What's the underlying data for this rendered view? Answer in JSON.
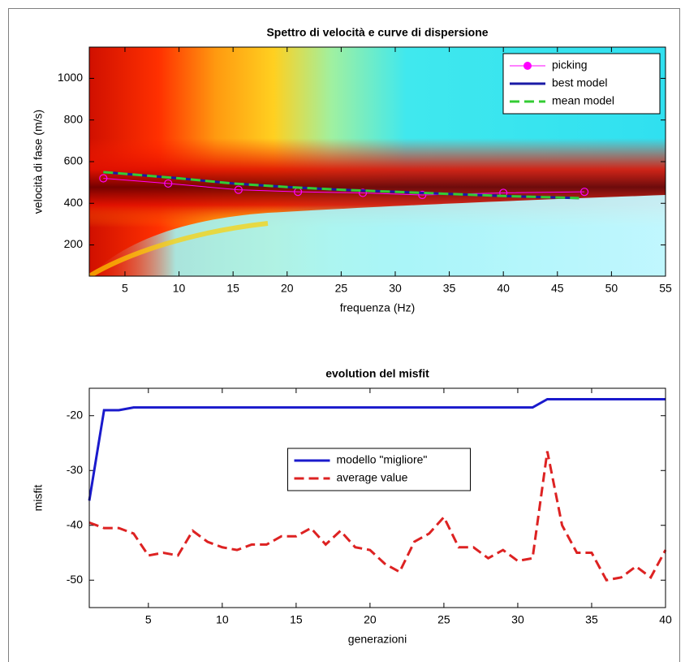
{
  "chart_data": [
    {
      "type": "line",
      "title": "Spettro di velocità e curve di dispersione",
      "xlabel": "frequenza (Hz)",
      "ylabel": "velocità di fase (m/s)",
      "xlim": [
        1.7,
        55
      ],
      "ylim": [
        50,
        1150
      ],
      "xticks": [
        5,
        10,
        15,
        20,
        25,
        30,
        35,
        40,
        45,
        50,
        55
      ],
      "yticks": [
        200,
        400,
        600,
        800,
        1000
      ],
      "grid": false,
      "legend": "upper right",
      "series": [
        {
          "name": "picking",
          "color": "#ff00ff",
          "marker": "circle",
          "dash": "solid",
          "x": [
            3,
            9,
            15.5,
            21,
            27,
            32.5,
            40,
            47.5
          ],
          "values": [
            520,
            495,
            465,
            455,
            450,
            440,
            450,
            455
          ]
        },
        {
          "name": "best model",
          "color": "#1a1aa6",
          "marker": "none",
          "dash": "solid",
          "x": [
            3,
            10,
            15,
            20,
            25,
            30,
            35,
            40,
            47
          ],
          "values": [
            550,
            520,
            495,
            478,
            465,
            455,
            445,
            435,
            425
          ]
        },
        {
          "name": "mean model",
          "color": "#33cc33",
          "marker": "none",
          "dash": "dashed",
          "x": [
            3,
            10,
            15,
            20,
            25,
            30,
            35,
            40,
            47
          ],
          "values": [
            550,
            520,
            495,
            478,
            465,
            455,
            445,
            435,
            425
          ]
        }
      ]
    },
    {
      "type": "line",
      "title": "evolution del misfit",
      "xlabel": "generazioni",
      "ylabel": "misfit",
      "xlim": [
        1,
        40
      ],
      "ylim": [
        -55,
        -15
      ],
      "xticks": [
        5,
        10,
        15,
        20,
        25,
        30,
        35,
        40
      ],
      "yticks": [
        -20,
        -30,
        -40,
        -50
      ],
      "grid": false,
      "legend": "center",
      "x": [
        1,
        2,
        3,
        4,
        5,
        6,
        7,
        8,
        9,
        10,
        11,
        12,
        13,
        14,
        15,
        16,
        17,
        18,
        19,
        20,
        21,
        22,
        23,
        24,
        25,
        26,
        27,
        28,
        29,
        30,
        31,
        32,
        33,
        34,
        35,
        36,
        37,
        38,
        39,
        40
      ],
      "series": [
        {
          "name": "modello \"migliore\"",
          "color": "#1a1acc",
          "marker": "none",
          "dash": "solid",
          "values": [
            -35.5,
            -19,
            -19,
            -18.5,
            -18.5,
            -18.5,
            -18.5,
            -18.5,
            -18.5,
            -18.5,
            -18.5,
            -18.5,
            -18.5,
            -18.5,
            -18.5,
            -18.5,
            -18.5,
            -18.5,
            -18.5,
            -18.5,
            -18.5,
            -18.5,
            -18.5,
            -18.5,
            -18.5,
            -18.5,
            -18.5,
            -18.5,
            -18.5,
            -18.5,
            -18.5,
            -17,
            -17,
            -17,
            -17,
            -17,
            -17,
            -17,
            -17,
            -17
          ]
        },
        {
          "name": "average value",
          "color": "#dd2222",
          "marker": "none",
          "dash": "dashed",
          "values": [
            -39.5,
            -40.5,
            -40.5,
            -41.5,
            -45.5,
            -45,
            -45.5,
            -41,
            -43,
            -44,
            -44.5,
            -43.5,
            -43.5,
            -42,
            -42,
            -40.5,
            -43.5,
            -41,
            -44,
            -44.5,
            -47,
            -48.5,
            -43,
            -41.5,
            -38.5,
            -44,
            -44,
            -46,
            -44.5,
            -46.5,
            -46,
            -26.5,
            -40,
            -45,
            -45,
            -50,
            -49.5,
            -47.5,
            -49.5,
            -44.5
          ]
        }
      ]
    }
  ]
}
